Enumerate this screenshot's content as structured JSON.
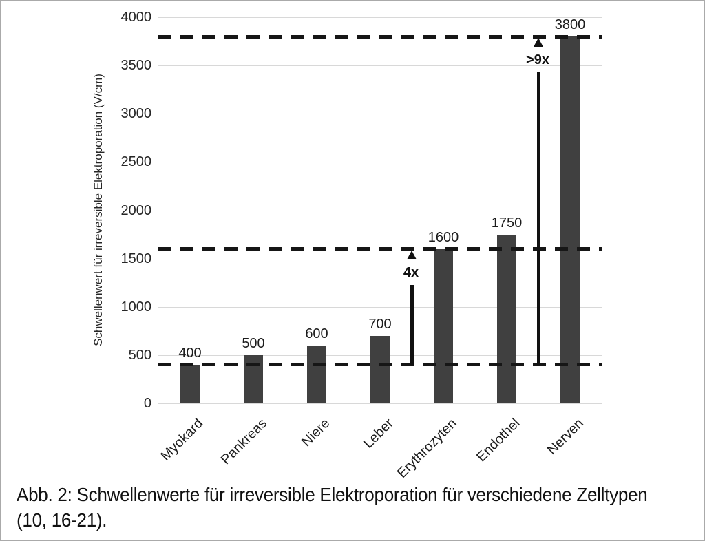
{
  "chart_data": {
    "type": "bar",
    "title": "",
    "categories": [
      "Myokard",
      "Pankreas",
      "Niere",
      "Leber",
      "Erythrozyten",
      "Endothel",
      "Nerven"
    ],
    "values": [
      400,
      500,
      600,
      700,
      1600,
      1750,
      3800
    ],
    "bar_labels": [
      "400",
      "500",
      "600",
      "700",
      "1600",
      "1750",
      "3800"
    ],
    "xlabel": "",
    "ylabel": "Schwellenwert für irreversible Elektroporation (V/cm)",
    "ylim": [
      0,
      4000
    ],
    "yticks": [
      0,
      500,
      1000,
      1500,
      2000,
      2500,
      3000,
      3500,
      4000
    ],
    "grid": true,
    "legend_position": "none",
    "bar_color": "#404040",
    "gridline_color": "#d8d8d8",
    "dashed_line_color": "#161616",
    "dashed_reference_lines": [
      400,
      1600,
      3800
    ],
    "annotations": [
      {
        "label": "4x",
        "from": 400,
        "to": 1600,
        "x_between": [
          "Leber",
          "Erythrozyten"
        ]
      },
      {
        "label": ">9x",
        "from": 400,
        "to": 3800,
        "x_between": [
          "Endothel",
          "Nerven"
        ]
      }
    ]
  },
  "caption": {
    "line1": "Abb. 2: Schwellenwerte für irreversible Elektroporation für verschiedene Zelltypen",
    "line2": "(10, 16-21)."
  }
}
